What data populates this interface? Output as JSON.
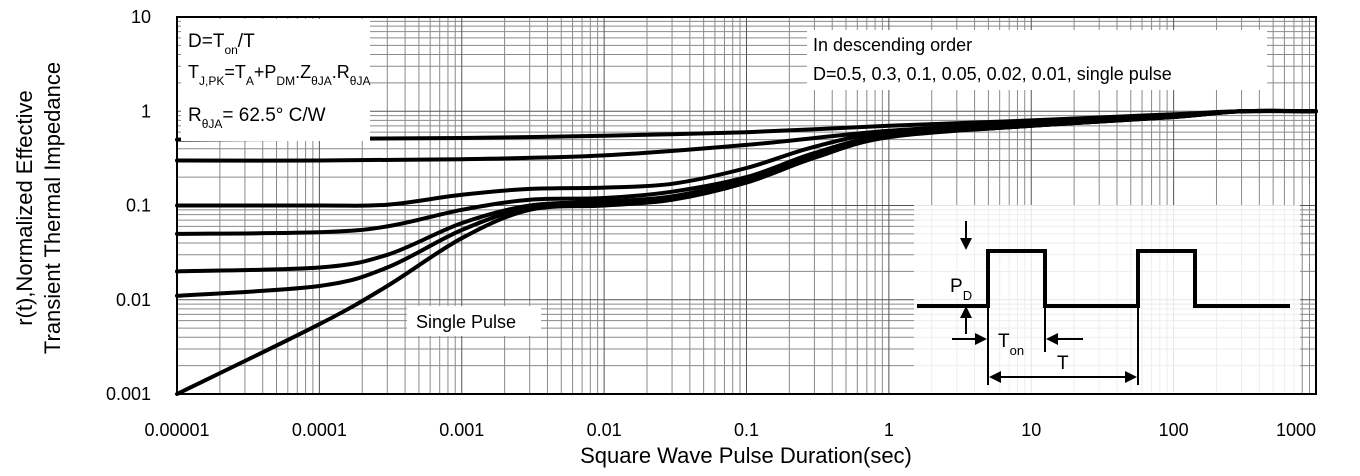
{
  "chart_data": {
    "type": "line",
    "xscale": "log",
    "yscale": "log",
    "xlim": [
      1e-05,
      1000
    ],
    "ylim": [
      0.001,
      10
    ],
    "xticks": [
      "0.00001",
      "0.0001",
      "0.001",
      "0.01",
      "0.1",
      "1",
      "10",
      "100",
      "1000"
    ],
    "yticks": [
      "0.001",
      "0.01",
      "0.1",
      "1",
      "10"
    ],
    "xlabel": "Square Wave Pulse Duration(sec)",
    "ylabel_line1": "r(t),Normalized Effective",
    "ylabel_line2": "Transient Thermal Impedance",
    "grid": true,
    "series": [
      {
        "name": "D=0.5",
        "points": [
          [
            1e-05,
            0.5
          ],
          [
            0.0001,
            0.51
          ],
          [
            0.001,
            0.52
          ],
          [
            0.01,
            0.55
          ],
          [
            0.1,
            0.6
          ],
          [
            1,
            0.7
          ],
          [
            10,
            0.8
          ],
          [
            100,
            0.93
          ],
          [
            300,
            1.0
          ],
          [
            1000,
            1.0
          ]
        ]
      },
      {
        "name": "D=0.3",
        "points": [
          [
            1e-05,
            0.3
          ],
          [
            0.0001,
            0.3
          ],
          [
            0.001,
            0.31
          ],
          [
            0.01,
            0.34
          ],
          [
            0.1,
            0.44
          ],
          [
            1,
            0.62
          ],
          [
            10,
            0.75
          ],
          [
            100,
            0.9
          ],
          [
            300,
            1.0
          ],
          [
            1000,
            1.0
          ]
        ]
      },
      {
        "name": "D=0.1",
        "points": [
          [
            1e-05,
            0.1
          ],
          [
            0.0001,
            0.1
          ],
          [
            0.0003,
            0.102
          ],
          [
            0.001,
            0.13
          ],
          [
            0.003,
            0.15
          ],
          [
            0.01,
            0.155
          ],
          [
            0.03,
            0.17
          ],
          [
            0.1,
            0.25
          ],
          [
            0.3,
            0.42
          ],
          [
            1,
            0.6
          ],
          [
            10,
            0.72
          ],
          [
            100,
            0.88
          ],
          [
            300,
            1.0
          ],
          [
            1000,
            1.0
          ]
        ]
      },
      {
        "name": "D=0.05",
        "points": [
          [
            1e-05,
            0.05
          ],
          [
            0.0001,
            0.052
          ],
          [
            0.0003,
            0.06
          ],
          [
            0.001,
            0.09
          ],
          [
            0.003,
            0.115
          ],
          [
            0.01,
            0.12
          ],
          [
            0.03,
            0.14
          ],
          [
            0.1,
            0.2
          ],
          [
            0.3,
            0.36
          ],
          [
            1,
            0.56
          ],
          [
            10,
            0.71
          ],
          [
            100,
            0.88
          ],
          [
            300,
            1.0
          ],
          [
            1000,
            1.0
          ]
        ]
      },
      {
        "name": "D=0.02",
        "points": [
          [
            1e-05,
            0.02
          ],
          [
            0.0001,
            0.022
          ],
          [
            0.0003,
            0.03
          ],
          [
            0.001,
            0.065
          ],
          [
            0.003,
            0.1
          ],
          [
            0.01,
            0.11
          ],
          [
            0.03,
            0.125
          ],
          [
            0.1,
            0.19
          ],
          [
            0.3,
            0.34
          ],
          [
            1,
            0.55
          ],
          [
            10,
            0.7
          ],
          [
            100,
            0.87
          ],
          [
            300,
            1.0
          ],
          [
            1000,
            1.0
          ]
        ]
      },
      {
        "name": "D=0.01",
        "points": [
          [
            1e-05,
            0.011
          ],
          [
            0.0001,
            0.014
          ],
          [
            0.0003,
            0.022
          ],
          [
            0.001,
            0.055
          ],
          [
            0.003,
            0.095
          ],
          [
            0.01,
            0.105
          ],
          [
            0.03,
            0.12
          ],
          [
            0.1,
            0.18
          ],
          [
            0.3,
            0.33
          ],
          [
            1,
            0.54
          ],
          [
            10,
            0.7
          ],
          [
            100,
            0.87
          ],
          [
            300,
            1.0
          ],
          [
            1000,
            1.0
          ]
        ]
      },
      {
        "name": "single pulse",
        "points": [
          [
            1e-05,
            0.001
          ],
          [
            0.0001,
            0.0055
          ],
          [
            0.0003,
            0.014
          ],
          [
            0.001,
            0.045
          ],
          [
            0.003,
            0.09
          ],
          [
            0.01,
            0.1
          ],
          [
            0.03,
            0.115
          ],
          [
            0.1,
            0.175
          ],
          [
            0.3,
            0.32
          ],
          [
            1,
            0.53
          ],
          [
            10,
            0.7
          ],
          [
            100,
            0.87
          ],
          [
            300,
            1.0
          ],
          [
            1000,
            1.0
          ]
        ]
      }
    ]
  },
  "annotations": {
    "box_left": {
      "line1": {
        "a": "D=T",
        "a_sub": "on",
        "b": "/T"
      },
      "line2": {
        "p1": "T",
        "s1": "J,PK",
        "p2": "=T",
        "s2": "A",
        "p3": "+P",
        "s3": "DM",
        "p4": ".Z",
        "s4": "θJA",
        "p5": ".R",
        "s5": "θJA"
      },
      "line3": {
        "p1": "R",
        "s1": "θJA",
        "p2": "= 62.5° C/W"
      }
    },
    "box_right": {
      "line1": "In descending order",
      "line2": "D=0.5, 0.3, 0.1, 0.05, 0.02, 0.01, single pulse"
    },
    "single_pulse_label": "Single Pulse",
    "inset": {
      "pd_main": "P",
      "pd_sub": "D",
      "ton_main": "T",
      "ton_sub": "on",
      "period": "T"
    }
  }
}
